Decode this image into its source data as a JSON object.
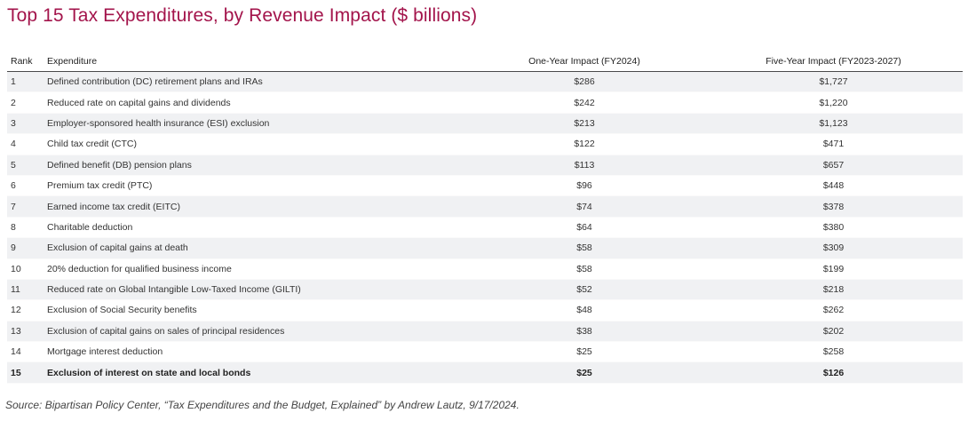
{
  "title": "Top 15 Tax Expenditures, by Revenue Impact ($ billions)",
  "source": "Source: Bipartisan Policy Center, “Tax Expenditures and the Budget, Explained” by Andrew Lautz, 9/17/2024.",
  "chart_data": {
    "type": "table",
    "title": "Top 15 Tax Expenditures, by Revenue Impact ($ billions)",
    "columns": [
      "Rank",
      "Expenditure",
      "One-Year Impact (FY2024)",
      "Five-Year Impact (FY2023-2027)"
    ],
    "rows": [
      [
        "1",
        "Defined contribution (DC) retirement plans and IRAs",
        "$286",
        "$1,727"
      ],
      [
        "2",
        "Reduced rate on capital gains and dividends",
        "$242",
        "$1,220"
      ],
      [
        "3",
        "Employer-sponsored health insurance (ESI) exclusion",
        "$213",
        "$1,123"
      ],
      [
        "4",
        "Child tax credit (CTC)",
        "$122",
        "$471"
      ],
      [
        "5",
        "Defined benefit (DB) pension plans",
        "$113",
        "$657"
      ],
      [
        "6",
        "Premium tax credit (PTC)",
        "$96",
        "$448"
      ],
      [
        "7",
        "Earned income tax credit (EITC)",
        "$74",
        "$378"
      ],
      [
        "8",
        "Charitable deduction",
        "$64",
        "$380"
      ],
      [
        "9",
        "Exclusion of capital gains at death",
        "$58",
        "$309"
      ],
      [
        "10",
        "20% deduction for qualified business income",
        "$58",
        "$199"
      ],
      [
        "11",
        "Reduced rate on Global Intangible Low-Taxed Income (GILTI)",
        "$52",
        "$218"
      ],
      [
        "12",
        "Exclusion of Social Security benefits",
        "$48",
        "$262"
      ],
      [
        "13",
        "Exclusion of capital gains on sales of principal residences",
        "$38",
        "$202"
      ],
      [
        "14",
        "Mortgage interest deduction",
        "$25",
        "$258"
      ],
      [
        "15",
        "Exclusion of interest on state and local bonds",
        "$25",
        "$126"
      ]
    ],
    "bold_rows": [
      15
    ],
    "colors": {
      "title": "#a3144b",
      "stripe": "#f0f1f3"
    }
  }
}
